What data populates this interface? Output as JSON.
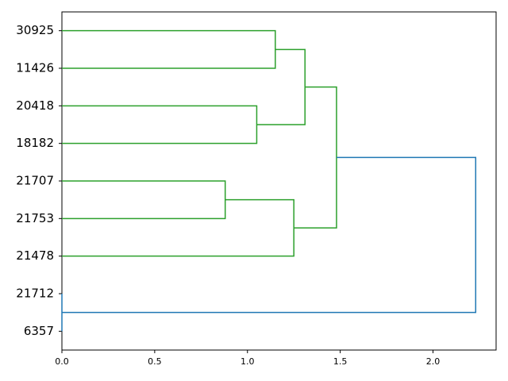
{
  "chart_data": {
    "type": "dendrogram",
    "orientation": "left",
    "leaves": [
      "30925",
      "11426",
      "20418",
      "18182",
      "21707",
      "21753",
      "21478",
      "21712",
      "6357"
    ],
    "links": [
      {
        "children": [
          0,
          1
        ],
        "height": 1.15,
        "color": "#2ca02c"
      },
      {
        "children": [
          2,
          3
        ],
        "height": 1.05,
        "color": "#2ca02c"
      },
      {
        "children": [
          9,
          10
        ],
        "height": 1.31,
        "color": "#2ca02c"
      },
      {
        "children": [
          4,
          5
        ],
        "height": 0.88,
        "color": "#2ca02c"
      },
      {
        "children": [
          12,
          6
        ],
        "height": 1.25,
        "color": "#2ca02c"
      },
      {
        "children": [
          11,
          13
        ],
        "height": 1.48,
        "color": "#2ca02c"
      },
      {
        "children": [
          7,
          8
        ],
        "height": 0,
        "color": "#1f77b4"
      },
      {
        "children": [
          14,
          15
        ],
        "height": 2.23,
        "color": "#1f77b4"
      }
    ],
    "xlim": [
      0,
      2.34
    ],
    "xticks": [
      {
        "value": 0,
        "label": "0.0"
      },
      {
        "value": 0.5,
        "label": "0.5"
      },
      {
        "value": 1,
        "label": "1.0"
      },
      {
        "value": 1.5,
        "label": "1.5"
      },
      {
        "value": 2,
        "label": "2.0"
      }
    ]
  }
}
